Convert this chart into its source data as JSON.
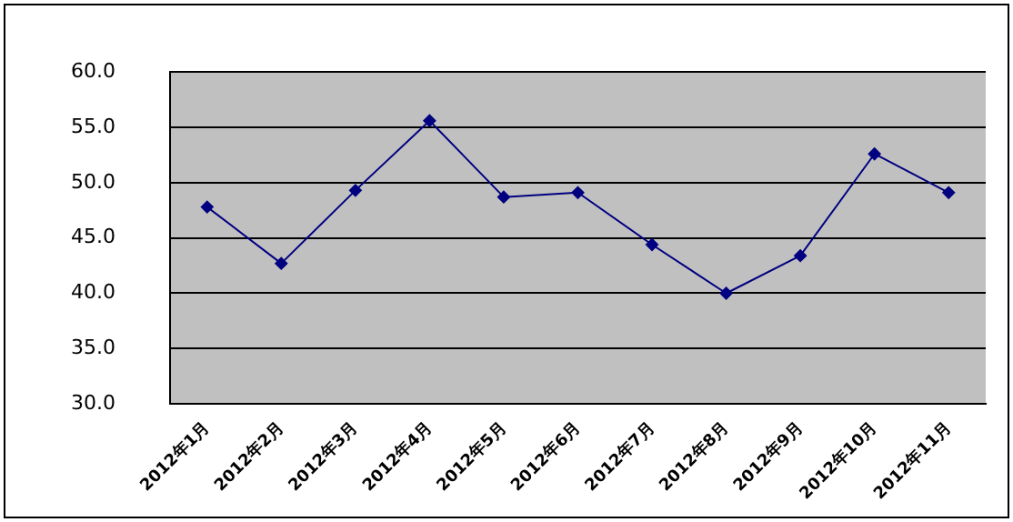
{
  "chart_data": {
    "type": "line",
    "categories": [
      "2012年1月",
      "2012年2月",
      "2012年3月",
      "2012年4月",
      "2012年5月",
      "2012年6月",
      "2012年7月",
      "2012年8月",
      "2012年9月",
      "2012年10月",
      "2012年11月"
    ],
    "values": [
      47.8,
      42.7,
      49.3,
      55.6,
      48.7,
      49.1,
      44.4,
      40.0,
      43.4,
      52.6,
      49.1
    ],
    "color": "#000080",
    "ylim": [
      30,
      60
    ],
    "yticks": [
      {
        "value": 30,
        "label": "30.0"
      },
      {
        "value": 35,
        "label": "35.0"
      },
      {
        "value": 40,
        "label": "40.0"
      },
      {
        "value": 45,
        "label": "45.0"
      },
      {
        "value": 50,
        "label": "50.0"
      },
      {
        "value": 55,
        "label": "55.0"
      },
      {
        "value": 60,
        "label": "60.0"
      }
    ],
    "grid": "y",
    "marker": "diamond",
    "legend": false
  }
}
